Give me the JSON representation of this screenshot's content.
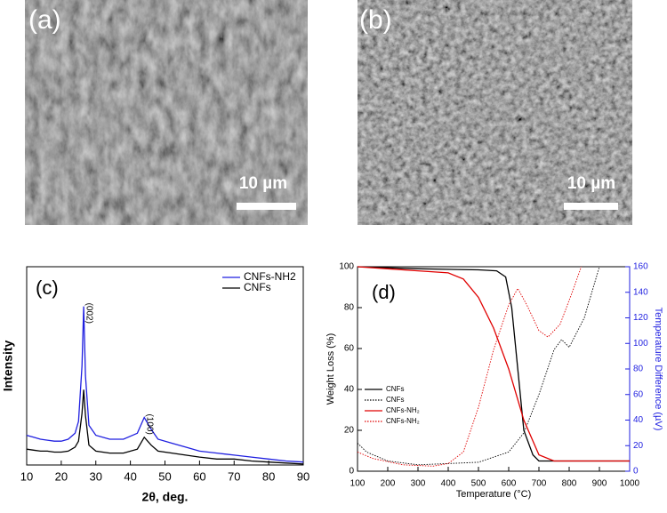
{
  "images": [
    {
      "label": "(a)",
      "scale_bar": "10 µm"
    },
    {
      "label": "(b)",
      "scale_bar": "10 µm"
    }
  ],
  "chart_data": [
    {
      "type": "line",
      "label": "(c)",
      "xlabel": "2θ, deg.",
      "ylabel": "Intensity",
      "x": [
        10,
        12,
        14,
        16,
        18,
        20,
        22,
        24,
        25,
        26,
        26.5,
        27,
        28,
        30,
        34,
        38,
        42,
        44,
        46,
        48,
        52,
        56,
        60,
        65,
        70,
        75,
        80,
        85,
        90
      ],
      "series": [
        {
          "name": "CNFs-NH2",
          "color": "#1f1fe0",
          "linestyle": "solid",
          "values": [
            15,
            14,
            13,
            12.5,
            12,
            12,
            13,
            16,
            22,
            50,
            80,
            45,
            20,
            15,
            13,
            13,
            16,
            24,
            18,
            13,
            11,
            9,
            7,
            6,
            5,
            4,
            3,
            2,
            1.5
          ]
        },
        {
          "name": "CNFs",
          "color": "#000000",
          "linestyle": "solid",
          "values": [
            8,
            7.5,
            7,
            7,
            6.5,
            6.5,
            7,
            9,
            12,
            26,
            38,
            25,
            10,
            7,
            6,
            6,
            8,
            14,
            10,
            7,
            6,
            5,
            4,
            3,
            3,
            2,
            1.5,
            1,
            0.5
          ]
        }
      ],
      "annotations": [
        {
          "text": "(002)",
          "x": 26.5,
          "y": 80
        },
        {
          "text": "(100)",
          "x": 44,
          "y": 24
        }
      ],
      "xlim": [
        10,
        90
      ],
      "xticks": [
        10,
        20,
        30,
        40,
        50,
        60,
        70,
        80,
        90
      ],
      "ylim": [
        0,
        100
      ],
      "legend": "upper right",
      "grid": false
    },
    {
      "type": "line",
      "label": "(d)",
      "xlabel": "Temperature (°C)",
      "ylabel": "Weight Loss (%)",
      "y2label": "Temperature Difference (µV)",
      "y2color": "#1f1fe0",
      "series": [
        {
          "name": "CNFs",
          "color": "#000000",
          "linestyle": "solid",
          "x": [
            100,
            300,
            500,
            560,
            590,
            610,
            630,
            650,
            680,
            700,
            1000
          ],
          "values": [
            100,
            99,
            98.5,
            98,
            95,
            80,
            50,
            20,
            8,
            5,
            5
          ]
        },
        {
          "name": "CNFs",
          "color": "#000000",
          "linestyle": "dotted",
          "axis": "y2",
          "x": [
            100,
            130,
            200,
            300,
            400,
            500,
            600,
            650,
            700,
            750,
            775,
            800,
            850,
            900
          ],
          "values": [
            22,
            15,
            8,
            5,
            6,
            7,
            15,
            30,
            60,
            95,
            103,
            97,
            120,
            160
          ]
        },
        {
          "name": "CNFs-NH₂",
          "color": "#e00000",
          "linestyle": "solid",
          "x": [
            100,
            200,
            300,
            400,
            450,
            500,
            550,
            600,
            650,
            700,
            750,
            1000
          ],
          "values": [
            100,
            99,
            98,
            97,
            94,
            85,
            70,
            50,
            25,
            8,
            5,
            5
          ]
        },
        {
          "name": "CNFs-NH₂",
          "color": "#e00000",
          "linestyle": "dotted",
          "axis": "y2",
          "x": [
            100,
            150,
            250,
            350,
            400,
            450,
            500,
            550,
            600,
            630,
            660,
            700,
            730,
            770,
            810,
            840
          ],
          "values": [
            15,
            10,
            5,
            4,
            6,
            15,
            50,
            95,
            130,
            143,
            130,
            110,
            105,
            115,
            140,
            160
          ]
        }
      ],
      "xlim": [
        100,
        1000
      ],
      "xticks": [
        100,
        200,
        300,
        400,
        500,
        600,
        700,
        800,
        900,
        1000
      ],
      "ylim": [
        0,
        100
      ],
      "yticks": [
        0,
        20,
        40,
        60,
        80,
        100
      ],
      "y2lim": [
        0,
        160
      ],
      "y2ticks": [
        0,
        20,
        40,
        60,
        80,
        100,
        120,
        140,
        160
      ],
      "legend": "center left",
      "grid": false
    }
  ]
}
